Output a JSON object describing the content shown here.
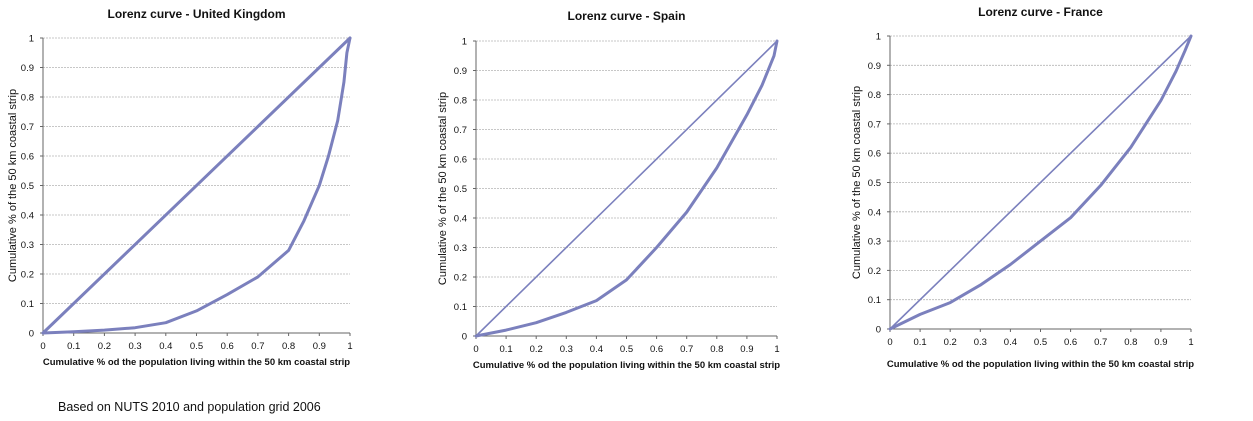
{
  "footnote": "Based on NUTS 2010  and population grid 2006",
  "chart_data": [
    {
      "type": "line",
      "title": "Lorenz curve - United Kingdom",
      "xlabel": "Cumulative % od the population living within the 50 km coastal strip",
      "ylabel": "Cumulative  % of the 50 km  coastal strip",
      "xlim": [
        0,
        1
      ],
      "ylim": [
        0,
        1
      ],
      "xticks": [
        "0",
        "0.1",
        "0.2",
        "0.3",
        "0.4",
        "0.5",
        "0.6",
        "0.7",
        "0.8",
        "0.9",
        "1"
      ],
      "yticks": [
        "0",
        "0.1",
        "0.2",
        "0.3",
        "0.4",
        "0.5",
        "0.6",
        "0.7",
        "0.8",
        "0.9",
        "1"
      ],
      "grid": "horizontal",
      "line_color": "#7b80bd",
      "series": [
        {
          "role": "equality",
          "x": [
            0,
            1
          ],
          "y": [
            0,
            1
          ]
        },
        {
          "role": "lorenz",
          "x": [
            0,
            0.1,
            0.2,
            0.3,
            0.4,
            0.5,
            0.6,
            0.7,
            0.8,
            0.85,
            0.9,
            0.93,
            0.96,
            0.98,
            0.99,
            1.0
          ],
          "y": [
            0,
            0.004,
            0.01,
            0.018,
            0.035,
            0.075,
            0.13,
            0.19,
            0.28,
            0.38,
            0.5,
            0.6,
            0.72,
            0.85,
            0.95,
            1.0
          ]
        }
      ]
    },
    {
      "type": "line",
      "title": "Lorenz curve - Spain",
      "xlabel": "Cumulative % od the population living within the 50 km coastal strip",
      "ylabel": "Cumulative  % of the 50 km  coastal strip",
      "xlim": [
        0,
        1
      ],
      "ylim": [
        0,
        1
      ],
      "xticks": [
        "0",
        "0.1",
        "0.2",
        "0.3",
        "0.4",
        "0.5",
        "0.6",
        "0.7",
        "0.8",
        "0.9",
        "1"
      ],
      "yticks": [
        "0",
        "0.1",
        "0.2",
        "0.3",
        "0.4",
        "0.5",
        "0.6",
        "0.7",
        "0.8",
        "0.9",
        "1"
      ],
      "grid": "horizontal",
      "line_color": "#7b80bd",
      "series": [
        {
          "role": "equality",
          "x": [
            0,
            1
          ],
          "y": [
            0,
            1
          ]
        },
        {
          "role": "lorenz",
          "x": [
            0,
            0.1,
            0.2,
            0.3,
            0.4,
            0.5,
            0.6,
            0.7,
            0.8,
            0.9,
            0.95,
            0.99,
            1.0
          ],
          "y": [
            0,
            0.02,
            0.045,
            0.08,
            0.12,
            0.19,
            0.3,
            0.42,
            0.57,
            0.75,
            0.85,
            0.95,
            1.0
          ]
        }
      ]
    },
    {
      "type": "line",
      "title": "Lorenz curve - France",
      "xlabel": "Cumulative % od the population living within the 50 km coastal strip",
      "ylabel": "Cumulative  % of the 50 km  coastal strip",
      "xlim": [
        0,
        1
      ],
      "ylim": [
        0,
        1
      ],
      "xticks": [
        "0",
        "0.1",
        "0.2",
        "0.3",
        "0.4",
        "0.5",
        "0.6",
        "0.7",
        "0.8",
        "0.9",
        "1"
      ],
      "yticks": [
        "0",
        "0.1",
        "0.2",
        "0.3",
        "0.4",
        "0.5",
        "0.6",
        "0.7",
        "0.8",
        "0.9",
        "1"
      ],
      "grid": "horizontal",
      "line_color": "#7b80bd",
      "series": [
        {
          "role": "equality",
          "x": [
            0,
            1
          ],
          "y": [
            0,
            1
          ]
        },
        {
          "role": "lorenz",
          "x": [
            0,
            0.1,
            0.2,
            0.3,
            0.4,
            0.5,
            0.6,
            0.7,
            0.8,
            0.9,
            0.95,
            0.98,
            1.0
          ],
          "y": [
            0,
            0.05,
            0.09,
            0.15,
            0.22,
            0.3,
            0.38,
            0.49,
            0.62,
            0.78,
            0.88,
            0.95,
            1.0
          ]
        }
      ]
    }
  ]
}
